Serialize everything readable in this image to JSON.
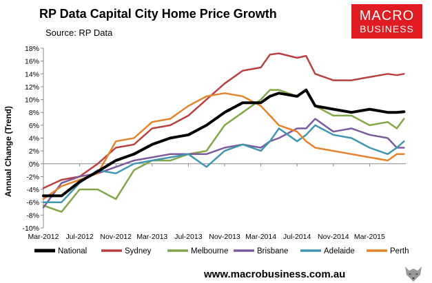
{
  "header": {
    "title": "RP Data Capital City Home Price Growth",
    "source": "Source: RP Data"
  },
  "logo": {
    "line1": "MACRO",
    "line2": "BUSINESS",
    "color": "#e11b22"
  },
  "footer": {
    "url": "www.macrobusiness.com.au"
  },
  "chart_data": {
    "type": "line",
    "title": "RP Data Capital City Home Price Growth",
    "ylabel": "Annual Change (Trend)",
    "xlabel": "",
    "ylim": [
      -10,
      18
    ],
    "ytick_step": 2,
    "ytick_suffix": "%",
    "xlim": [
      0,
      40
    ],
    "x_ticks": [
      {
        "x": 0,
        "label": "Mar-2012"
      },
      {
        "x": 4,
        "label": "Jul-2012"
      },
      {
        "x": 8,
        "label": "Nov-2012"
      },
      {
        "x": 12,
        "label": "Mar-2013"
      },
      {
        "x": 16,
        "label": "Jul-2013"
      },
      {
        "x": 20,
        "label": "Nov-2013"
      },
      {
        "x": 24,
        "label": "Mar-2014"
      },
      {
        "x": 28,
        "label": "Jul-2014"
      },
      {
        "x": 32,
        "label": "Nov-2014"
      },
      {
        "x": 36,
        "label": "Mar-2015"
      }
    ],
    "x": [
      0,
      2,
      4,
      6,
      8,
      10,
      12,
      14,
      16,
      18,
      20,
      22,
      24,
      25,
      26,
      28,
      29,
      30,
      32,
      34,
      36,
      38,
      39,
      39.8
    ],
    "series": [
      {
        "name": "National",
        "color": "#000000",
        "width": 4,
        "values": [
          -5.0,
          -5.0,
          -2.8,
          -1.2,
          0.5,
          1.5,
          3.0,
          4.0,
          4.5,
          6.0,
          8.0,
          9.5,
          9.5,
          10.5,
          11.0,
          10.5,
          11.5,
          9.0,
          8.5,
          8.0,
          8.5,
          8.0,
          8.0,
          8.1
        ]
      },
      {
        "name": "Sydney",
        "color": "#b84040",
        "width": 2.5,
        "values": [
          -3.8,
          -2.5,
          -2.0,
          0.0,
          2.5,
          3.0,
          5.5,
          6.0,
          7.5,
          10.0,
          12.5,
          14.5,
          15.0,
          17.0,
          17.2,
          16.5,
          16.8,
          14.0,
          13.0,
          13.0,
          13.5,
          14.0,
          13.8,
          14.0
        ]
      },
      {
        "name": "Melbourne",
        "color": "#82a548",
        "width": 2.5,
        "values": [
          -6.5,
          -7.5,
          -4.0,
          -4.0,
          -5.5,
          -1.0,
          0.5,
          0.5,
          1.5,
          2.0,
          6.0,
          8.0,
          10.0,
          11.5,
          11.5,
          10.5,
          11.5,
          9.0,
          7.5,
          7.5,
          6.0,
          6.5,
          5.5,
          7.0
        ]
      },
      {
        "name": "Brisbane",
        "color": "#7b5a9d",
        "width": 2.5,
        "values": [
          -6.8,
          -3.0,
          -2.0,
          -1.5,
          -0.5,
          0.5,
          1.0,
          1.5,
          1.5,
          1.5,
          2.5,
          3.0,
          2.5,
          3.5,
          4.0,
          5.5,
          5.5,
          7.0,
          5.0,
          5.5,
          4.5,
          4.0,
          2.5,
          2.5
        ]
      },
      {
        "name": "Adelaide",
        "color": "#3f95b0",
        "width": 2.5,
        "values": [
          -6.0,
          -6.0,
          -3.0,
          -1.0,
          -1.5,
          0.0,
          0.5,
          1.0,
          1.5,
          -0.5,
          2.0,
          3.0,
          2.0,
          3.5,
          5.5,
          3.5,
          4.5,
          6.0,
          4.5,
          4.0,
          2.5,
          1.5,
          2.5,
          3.5
        ]
      },
      {
        "name": "Perth",
        "color": "#e5832a",
        "width": 2.5,
        "values": [
          -5.5,
          -3.5,
          -2.5,
          -1.5,
          3.5,
          4.0,
          6.5,
          7.0,
          9.0,
          10.5,
          11.0,
          10.5,
          9.0,
          7.5,
          6.0,
          5.0,
          3.5,
          2.5,
          2.0,
          1.5,
          1.0,
          0.5,
          1.5,
          1.5
        ]
      }
    ],
    "grid": false,
    "legend_position": "bottom"
  }
}
